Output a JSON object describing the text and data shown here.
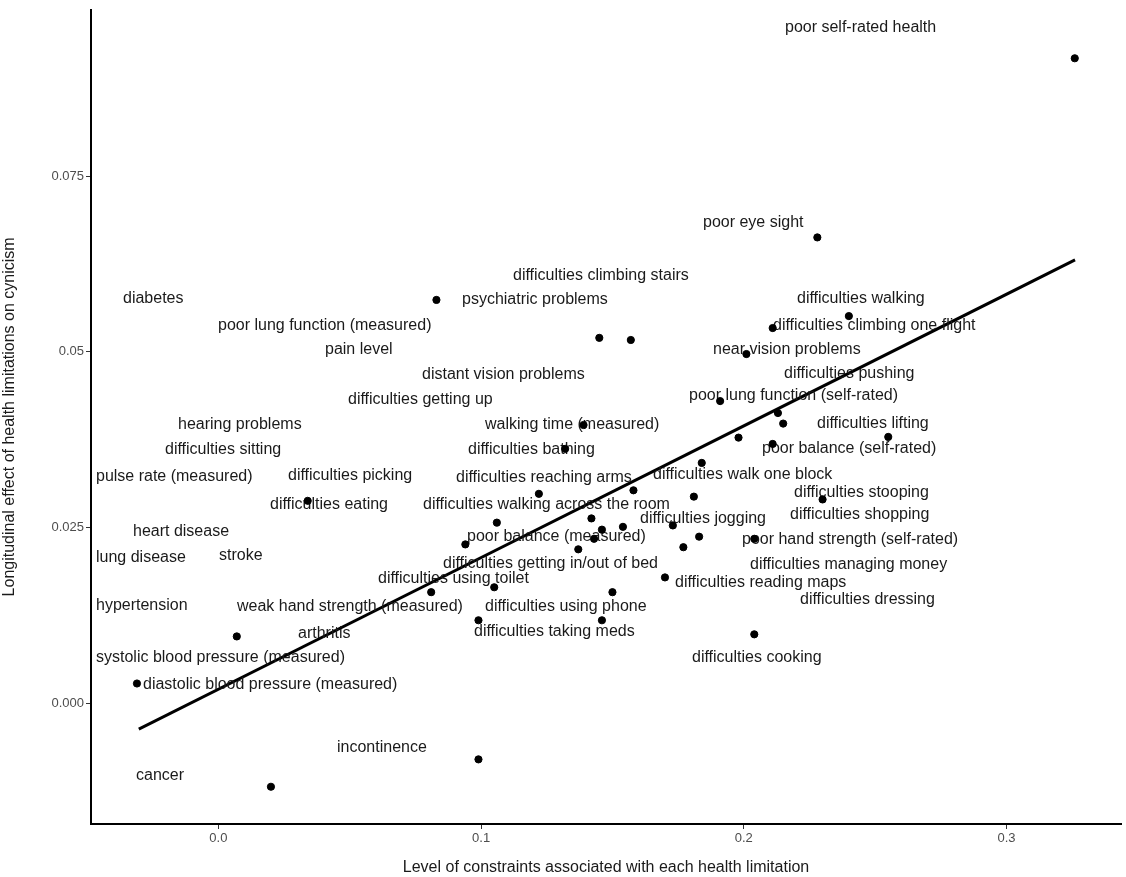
{
  "chart_data": {
    "type": "scatter",
    "xlabel": "Level of constraints associated with each health limitation",
    "ylabel": "Longitudinal effect of health limitations on cynicism",
    "xlim": [
      -0.0485,
      0.3436
    ],
    "ylim": [
      -0.0172,
      0.0987
    ],
    "xticks": [
      {
        "value": 0,
        "label": "0.0"
      },
      0.1,
      0.2,
      0.3
    ],
    "yticks": [
      {
        "value": 0,
        "label": "0.000"
      },
      0.025,
      0.05,
      0.075
    ],
    "grid": false,
    "legend": false,
    "series": [
      {
        "marker": "circle",
        "color": "#000000",
        "x": [
          0.326,
          0.228,
          0.083,
          0.145,
          0.157,
          0.201,
          0.211,
          0.24,
          0.191,
          0.213,
          0.215,
          0.198,
          0.255,
          0.211,
          0.23,
          0.204,
          0.139,
          0.132,
          0.184,
          0.122,
          0.158,
          0.181,
          0.106,
          0.142,
          0.154,
          0.146,
          0.173,
          0.183,
          0.094,
          0.143,
          0.177,
          0.137,
          0.17,
          0.081,
          0.105,
          0.15,
          0.099,
          0.146,
          0.204,
          0.099,
          0.007,
          -0.031,
          0.02,
          0.034
        ],
        "values": [
          0.0918,
          0.0663,
          0.0574,
          0.052,
          0.0517,
          0.0497,
          0.0534,
          0.0551,
          0.043,
          0.0413,
          0.0398,
          0.0378,
          0.0379,
          0.0369,
          0.029,
          0.0234,
          0.0396,
          0.0362,
          0.0342,
          0.0298,
          0.0303,
          0.0294,
          0.0257,
          0.0263,
          0.0251,
          0.0247,
          0.0253,
          0.0237,
          0.0226,
          0.0234,
          0.0222,
          0.0219,
          0.0179,
          0.0158,
          0.0165,
          0.0158,
          0.0118,
          0.0118,
          0.0098,
          -0.008,
          0.0095,
          0.0028,
          -0.0119,
          0.0288
        ]
      },
      {
        "type": "line",
        "color": "#000000",
        "x": [
          -0.0303,
          0.3261
        ],
        "values": [
          -0.0037,
          0.0631
        ]
      }
    ],
    "annotations": [
      "poor self-rated health",
      "poor eye sight",
      "difficulties climbing stairs",
      "diabetes",
      "psychiatric problems",
      "difficulties walking",
      "poor lung function (measured)",
      "difficulties climbing one flight",
      "pain level",
      "near vision problems",
      "distant vision problems",
      "difficulties pushing",
      "difficulties getting up",
      "poor lung function (self-rated)",
      "hearing problems",
      "walking time (measured)",
      "difficulties lifting",
      "difficulties sitting",
      "difficulties bathing",
      "poor balance (self-rated)",
      "pulse rate (measured)",
      "difficulties picking",
      "difficulties reaching arms",
      "difficulties walk one block",
      "difficulties eating",
      "difficulties walking across the room",
      "difficulties stooping",
      "difficulties jogging",
      "difficulties shopping",
      "heart disease",
      "poor balance (measured)",
      "poor hand strength (self-rated)",
      "lung disease",
      "stroke",
      "difficulties getting in/out of bed",
      "difficulties reading maps",
      "difficulties managing money",
      "difficulties using toilet",
      "difficulties dressing",
      "hypertension",
      "weak hand strength (measured)",
      "difficulties using phone",
      "arthritis",
      "difficulties taking meds",
      "difficulties cooking",
      "systolic blood pressure (measured)",
      "diastolic blood pressure (measured)",
      "incontinence",
      "cancer"
    ]
  }
}
